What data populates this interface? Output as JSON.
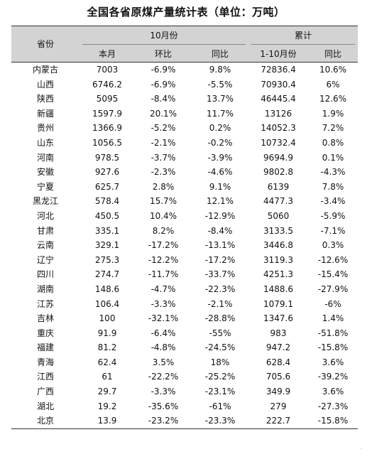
{
  "title": "全国各省原煤产量统计表（单位：万吨）",
  "header": {
    "province": "省份",
    "october": "10月份",
    "cumulative": "累计",
    "this_month": "本月",
    "mom": "环比",
    "yoy": "同比",
    "jan_oct": "1-10月份",
    "cum_yoy": "同比"
  },
  "rows": [
    {
      "province": "内蒙古",
      "this_month": "7003",
      "mom": "-6.9%",
      "yoy": "9.8%",
      "jan_oct": "72836.4",
      "cum_yoy": "10.6%"
    },
    {
      "province": "山西",
      "this_month": "6746.2",
      "mom": "-6.9%",
      "yoy": "-5.5%",
      "jan_oct": "70930.4",
      "cum_yoy": "6%"
    },
    {
      "province": "陕西",
      "this_month": "5095",
      "mom": "-8.4%",
      "yoy": "13.7%",
      "jan_oct": "46445.4",
      "cum_yoy": "12.6%"
    },
    {
      "province": "新疆",
      "this_month": "1597.9",
      "mom": "20.1%",
      "yoy": "11.7%",
      "jan_oct": "13126",
      "cum_yoy": "1.9%"
    },
    {
      "province": "贵州",
      "this_month": "1366.9",
      "mom": "-5.2%",
      "yoy": "0.2%",
      "jan_oct": "14052.3",
      "cum_yoy": "7.2%"
    },
    {
      "province": "山东",
      "this_month": "1056.5",
      "mom": "-2.1%",
      "yoy": "-0.2%",
      "jan_oct": "10732.4",
      "cum_yoy": "0.8%"
    },
    {
      "province": "河南",
      "this_month": "978.5",
      "mom": "-3.7%",
      "yoy": "-3.9%",
      "jan_oct": "9694.9",
      "cum_yoy": "0.1%"
    },
    {
      "province": "安徽",
      "this_month": "927.6",
      "mom": "-2.3%",
      "yoy": "-4.6%",
      "jan_oct": "9802.8",
      "cum_yoy": "-4.3%"
    },
    {
      "province": "宁夏",
      "this_month": "625.7",
      "mom": "2.8%",
      "yoy": "9.1%",
      "jan_oct": "6139",
      "cum_yoy": "7.8%"
    },
    {
      "province": "黑龙江",
      "this_month": "578.4",
      "mom": "15.7%",
      "yoy": "12.1%",
      "jan_oct": "4477.3",
      "cum_yoy": "-3.4%"
    },
    {
      "province": "河北",
      "this_month": "450.5",
      "mom": "10.4%",
      "yoy": "-12.9%",
      "jan_oct": "5060",
      "cum_yoy": "-5.9%"
    },
    {
      "province": "甘肃",
      "this_month": "335.1",
      "mom": "8.2%",
      "yoy": "-8.4%",
      "jan_oct": "3133.5",
      "cum_yoy": "-7.1%"
    },
    {
      "province": "云南",
      "this_month": "329.1",
      "mom": "-17.2%",
      "yoy": "-13.1%",
      "jan_oct": "3446.8",
      "cum_yoy": "0.3%"
    },
    {
      "province": "辽宁",
      "this_month": "275.3",
      "mom": "-12.2%",
      "yoy": "-17.2%",
      "jan_oct": "3119.3",
      "cum_yoy": "-12.6%"
    },
    {
      "province": "四川",
      "this_month": "274.7",
      "mom": "-11.7%",
      "yoy": "-33.7%",
      "jan_oct": "4251.3",
      "cum_yoy": "-15.4%"
    },
    {
      "province": "湖南",
      "this_month": "148.6",
      "mom": "-4.7%",
      "yoy": "-22.3%",
      "jan_oct": "1488.6",
      "cum_yoy": "-27.9%"
    },
    {
      "province": "江苏",
      "this_month": "106.4",
      "mom": "-3.3%",
      "yoy": "-2.1%",
      "jan_oct": "1079.1",
      "cum_yoy": "-6%"
    },
    {
      "province": "吉林",
      "this_month": "100",
      "mom": "-32.1%",
      "yoy": "-28.8%",
      "jan_oct": "1347.6",
      "cum_yoy": "1.4%"
    },
    {
      "province": "重庆",
      "this_month": "91.9",
      "mom": "-6.4%",
      "yoy": "-55%",
      "jan_oct": "983",
      "cum_yoy": "-51.8%"
    },
    {
      "province": "福建",
      "this_month": "81.2",
      "mom": "-4.8%",
      "yoy": "-24.5%",
      "jan_oct": "947.2",
      "cum_yoy": "-15.8%"
    },
    {
      "province": "青海",
      "this_month": "62.4",
      "mom": "3.5%",
      "yoy": "18%",
      "jan_oct": "628.4",
      "cum_yoy": "3.6%"
    },
    {
      "province": "江西",
      "this_month": "61",
      "mom": "-22.2%",
      "yoy": "-25.2%",
      "jan_oct": "705.6",
      "cum_yoy": "-39.2%"
    },
    {
      "province": "广西",
      "this_month": "29.7",
      "mom": "-3.3%",
      "yoy": "-23.1%",
      "jan_oct": "349.9",
      "cum_yoy": "3.6%"
    },
    {
      "province": "湖北",
      "this_month": "19.2",
      "mom": "-35.6%",
      "yoy": "-61%",
      "jan_oct": "279",
      "cum_yoy": "-27.3%"
    },
    {
      "province": "北京",
      "this_month": "13.9",
      "mom": "-23.2%",
      "yoy": "-23.3%",
      "jan_oct": "222.7",
      "cum_yoy": "-15.8%"
    }
  ]
}
